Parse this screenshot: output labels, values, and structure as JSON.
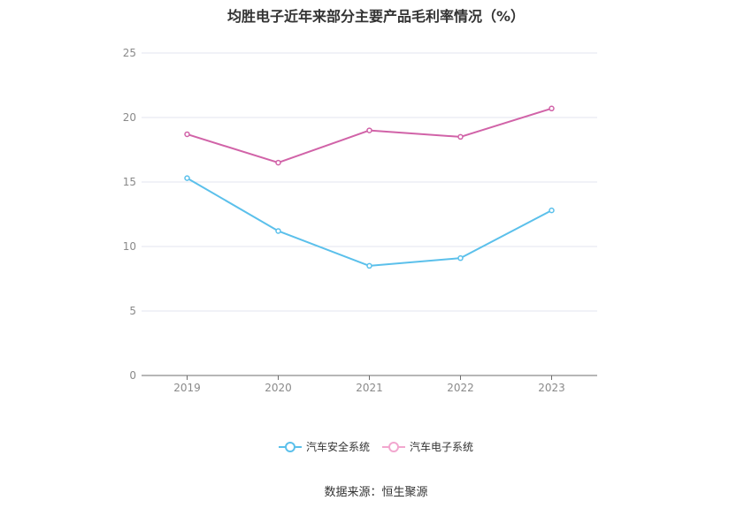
{
  "chart_data": {
    "type": "line",
    "title": "均胜电子近年来部分主要产品毛利率情况（%）",
    "categories": [
      "2019",
      "2020",
      "2021",
      "2022",
      "2023"
    ],
    "ylim": [
      0,
      25
    ],
    "yticks": [
      0,
      5,
      10,
      15,
      20,
      25
    ],
    "grid": true,
    "legend_position": "bottom",
    "series": [
      {
        "name": "汽车安全系统",
        "color": "#5bc0eb",
        "values": [
          15.3,
          11.2,
          8.5,
          9.1,
          12.8
        ]
      },
      {
        "name": "汽车电子系统",
        "color": "#d163a8",
        "legend_color": "#f2a7cf",
        "values": [
          18.7,
          16.5,
          19.0,
          18.5,
          20.7
        ]
      }
    ]
  },
  "source": "数据来源：恒生聚源"
}
